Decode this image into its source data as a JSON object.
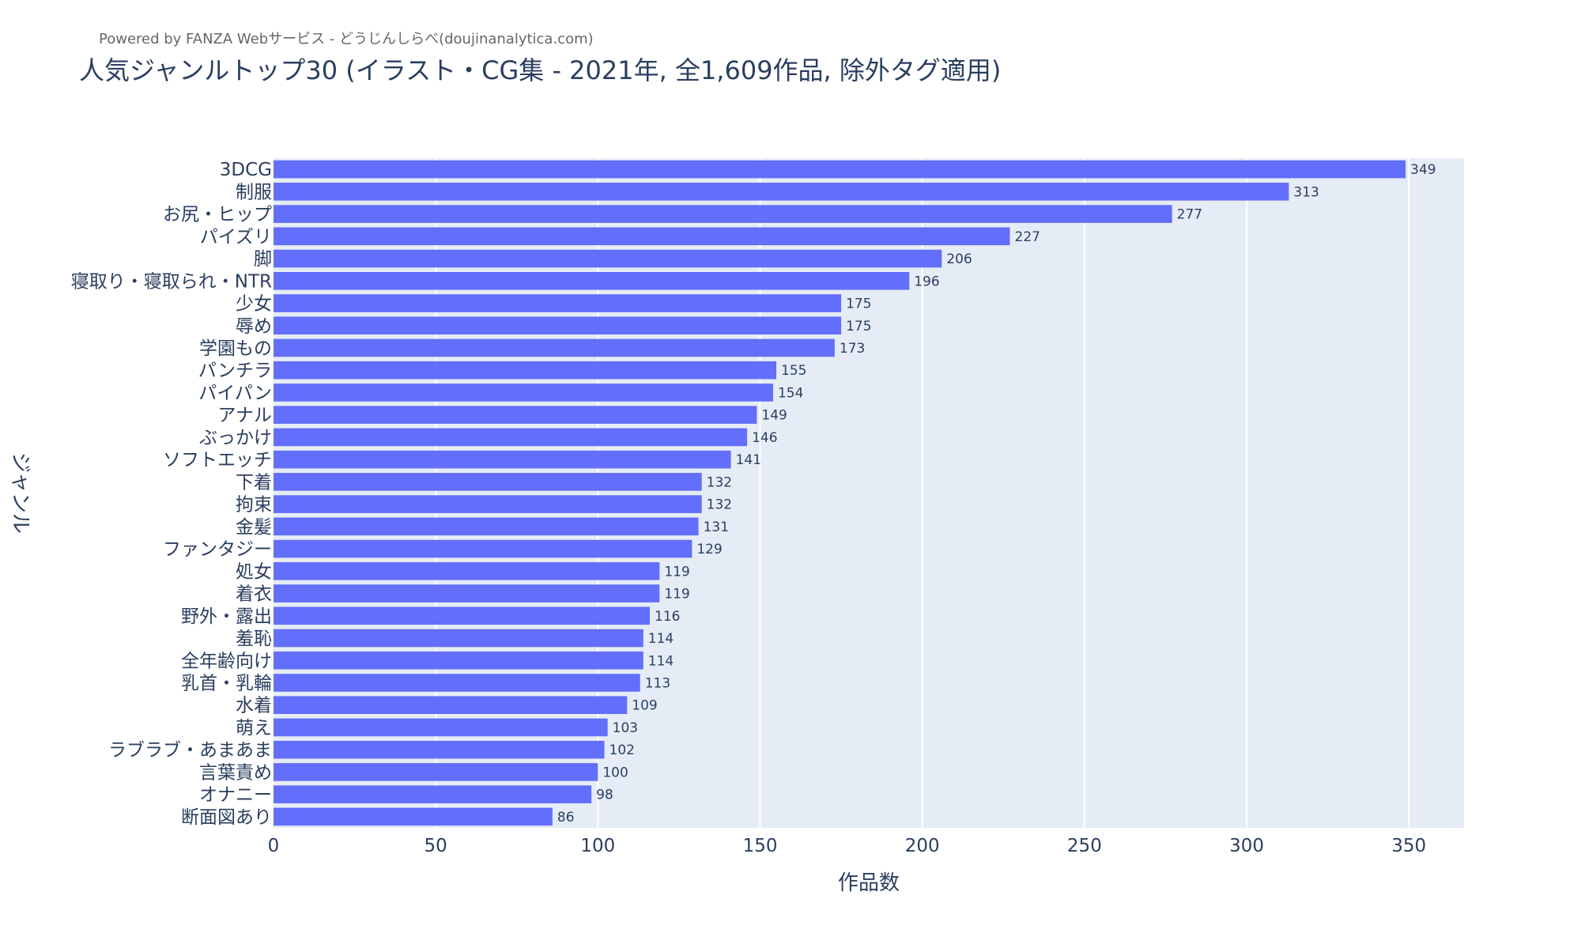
{
  "credit": "Powered by FANZA Webサービス - どうじんしらべ(doujinanalytica.com)",
  "chart_data": {
    "type": "bar",
    "orientation": "horizontal",
    "title": "人気ジャンルトップ30 (イラスト・CG集 - 2021年, 全1,609作品, 除外タグ適用)",
    "xlabel": "作品数",
    "ylabel": "ジャンル",
    "xlim": [
      0,
      367
    ],
    "xticks": [
      0,
      50,
      100,
      150,
      200,
      250,
      300,
      350
    ],
    "grid": true,
    "bar_color": "#636efa",
    "plot_background": "#e5ecf6",
    "categories": [
      "3DCG",
      "制服",
      "お尻・ヒップ",
      "パイズリ",
      "脚",
      "寝取り・寝取られ・NTR",
      "少女",
      "辱め",
      "学園もの",
      "パンチラ",
      "パイパン",
      "アナル",
      "ぶっかけ",
      "ソフトエッチ",
      "下着",
      "拘束",
      "金髪",
      "ファンタジー",
      "処女",
      "着衣",
      "野外・露出",
      "羞恥",
      "全年齢向け",
      "乳首・乳輪",
      "水着",
      "萌え",
      "ラブラブ・あまあま",
      "言葉責め",
      "オナニー",
      "断面図あり"
    ],
    "values": [
      349,
      313,
      277,
      227,
      206,
      196,
      175,
      175,
      173,
      155,
      154,
      149,
      146,
      141,
      132,
      132,
      131,
      129,
      119,
      119,
      116,
      114,
      114,
      113,
      109,
      103,
      102,
      100,
      98,
      86
    ]
  }
}
